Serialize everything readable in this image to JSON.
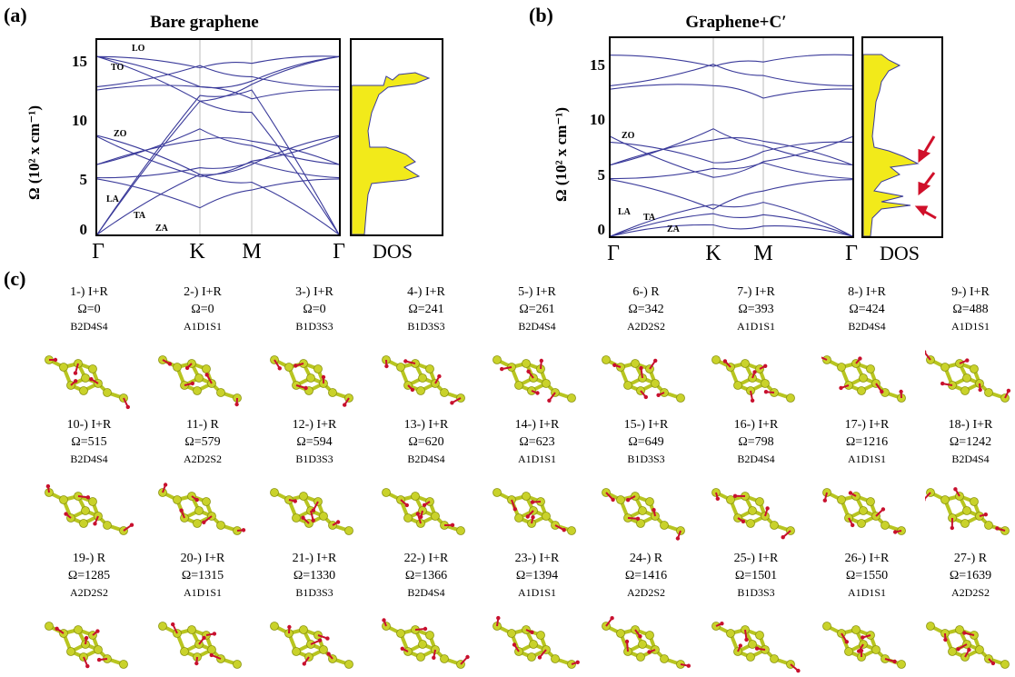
{
  "panels": {
    "a": {
      "tag": "(a)",
      "title": "Bare graphene",
      "ylabel": "Ω (10² x cm⁻¹)",
      "yticks": [
        "15",
        "10",
        "5",
        "0"
      ],
      "xticks": [
        "Γ",
        "K",
        "M",
        "Γ"
      ],
      "dos_label": "DOS",
      "band_labels": [
        "LO",
        "TO",
        "ZO",
        "LA",
        "TA",
        "ZA"
      ]
    },
    "b": {
      "tag": "(b)",
      "title": "Graphene+C′",
      "ylabel": "Ω (10² x cm⁻¹)",
      "yticks": [
        "15",
        "10",
        "5",
        "0"
      ],
      "xticks": [
        "Γ",
        "K",
        "M",
        "Γ"
      ],
      "dos_label": "DOS",
      "band_labels": [
        "ZO",
        "LA",
        "TA",
        "ZA"
      ]
    },
    "c": {
      "tag": "(c)"
    }
  },
  "colors": {
    "bands": "#3a3a9a",
    "dos_fill": "#f2ea1a",
    "atom": "#b8c520",
    "arrow": "#c8102e"
  },
  "chart_data": [
    {
      "type": "line",
      "title": "Bare graphene",
      "xlabel": "",
      "ylabel": "Ω (10² x cm⁻¹)",
      "categories": [
        "Γ",
        "K",
        "M",
        "Γ"
      ],
      "ylim": [
        0,
        17.5
      ],
      "series": [
        {
          "name": "LO",
          "values": [
            16.0,
            13.3,
            13.8,
            16.0
          ]
        },
        {
          "name": "TO",
          "values": [
            16.0,
            12.0,
            13.5,
            16.0
          ]
        },
        {
          "name": "ZO",
          "values": [
            8.9,
            5.4,
            6.3,
            8.9
          ]
        },
        {
          "name": "LA",
          "values": [
            0,
            12.5,
            13.0,
            0
          ]
        },
        {
          "name": "TA",
          "values": [
            0,
            12.0,
            11.0,
            0
          ]
        },
        {
          "name": "ZA",
          "values": [
            0,
            5.4,
            4.7,
            0
          ]
        }
      ]
    },
    {
      "type": "line",
      "title": "Graphene+C′",
      "xlabel": "",
      "ylabel": "Ω (10² x cm⁻¹)",
      "categories": [
        "Γ",
        "K",
        "M",
        "Γ"
      ],
      "ylim": [
        0,
        17.5
      ],
      "series": [
        {
          "name": "ZO",
          "values": [
            8.3,
            6.5,
            7.5,
            8.3
          ]
        },
        {
          "name": "LA",
          "values": [
            0,
            2.8,
            3.0,
            0
          ]
        },
        {
          "name": "TA",
          "values": [
            0,
            2.0,
            1.9,
            0
          ]
        },
        {
          "name": "ZA",
          "values": [
            0,
            1.0,
            0.9,
            0
          ]
        }
      ]
    }
  ],
  "modes": [
    {
      "id": "1-) I+R",
      "freq": "Ω=0",
      "irrep": "B2D4S4"
    },
    {
      "id": "2-) I+R",
      "freq": "Ω=0",
      "irrep": "A1D1S1"
    },
    {
      "id": "3-) I+R",
      "freq": "Ω=0",
      "irrep": "B1D3S3"
    },
    {
      "id": "4-) I+R",
      "freq": "Ω=241",
      "irrep": "B1D3S3"
    },
    {
      "id": "5-) I+R",
      "freq": "Ω=261",
      "irrep": "B2D4S4"
    },
    {
      "id": "6-) R",
      "freq": "Ω=342",
      "irrep": "A2D2S2"
    },
    {
      "id": "7-) I+R",
      "freq": "Ω=393",
      "irrep": "A1D1S1"
    },
    {
      "id": "8-) I+R",
      "freq": "Ω=424",
      "irrep": "B2D4S4"
    },
    {
      "id": "9-) I+R",
      "freq": "Ω=488",
      "irrep": "A1D1S1"
    },
    {
      "id": "10-) I+R",
      "freq": "Ω=515",
      "irrep": "B2D4S4"
    },
    {
      "id": "11-) R",
      "freq": "Ω=579",
      "irrep": "A2D2S2"
    },
    {
      "id": "12-) I+R",
      "freq": "Ω=594",
      "irrep": "B1D3S3"
    },
    {
      "id": "13-) I+R",
      "freq": "Ω=620",
      "irrep": "B2D4S4"
    },
    {
      "id": "14-) I+R",
      "freq": "Ω=623",
      "irrep": "A1D1S1"
    },
    {
      "id": "15-) I+R",
      "freq": "Ω=649",
      "irrep": "B1D3S3"
    },
    {
      "id": "16-) I+R",
      "freq": "Ω=798",
      "irrep": "B2D4S4"
    },
    {
      "id": "17-) I+R",
      "freq": "Ω=1216",
      "irrep": "A1D1S1"
    },
    {
      "id": "18-) I+R",
      "freq": "Ω=1242",
      "irrep": "B2D4S4"
    },
    {
      "id": "19-) R",
      "freq": "Ω=1285",
      "irrep": "A2D2S2"
    },
    {
      "id": "20-) I+R",
      "freq": "Ω=1315",
      "irrep": "A1D1S1"
    },
    {
      "id": "21-) I+R",
      "freq": "Ω=1330",
      "irrep": "B1D3S3"
    },
    {
      "id": "22-) I+R",
      "freq": "Ω=1366",
      "irrep": "B2D4S4"
    },
    {
      "id": "23-) I+R",
      "freq": "Ω=1394",
      "irrep": "A1D1S1"
    },
    {
      "id": "24-) R",
      "freq": "Ω=1416",
      "irrep": "A2D2S2"
    },
    {
      "id": "25-) I+R",
      "freq": "Ω=1501",
      "irrep": "B1D3S3"
    },
    {
      "id": "26-) I+R",
      "freq": "Ω=1550",
      "irrep": "A1D1S1"
    },
    {
      "id": "27-) R",
      "freq": "Ω=1639",
      "irrep": "A2D2S2"
    }
  ]
}
